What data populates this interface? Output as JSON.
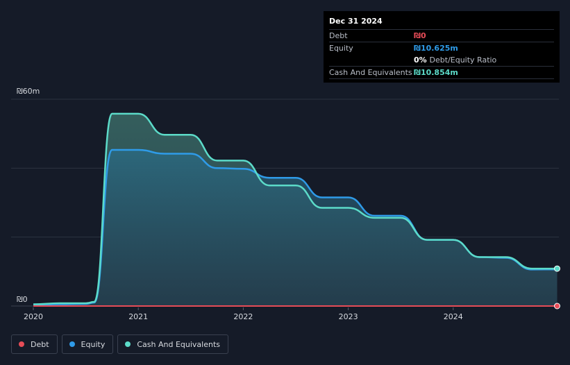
{
  "chart_data": {
    "type": "area",
    "x_ticks": [
      "2020",
      "2021",
      "2022",
      "2023",
      "2024"
    ],
    "y_ticks": [
      "₪0",
      "₪60m"
    ],
    "ylim": [
      0,
      60
    ],
    "y_unit": "₪m",
    "grid": true,
    "legend_position": "bottom-left",
    "series": [
      {
        "name": "Debt",
        "color": "#e64c57",
        "points": [
          [
            2020.0,
            0
          ],
          [
            2024.99,
            0
          ]
        ]
      },
      {
        "name": "Equity",
        "color": "#2f9be8",
        "points": [
          [
            2020.0,
            0.3
          ],
          [
            2020.25,
            0.5
          ],
          [
            2020.5,
            0.6
          ],
          [
            2020.58,
            1.0
          ],
          [
            2020.75,
            45.3
          ],
          [
            2021.0,
            45.3
          ],
          [
            2021.25,
            44.2
          ],
          [
            2021.5,
            44.2
          ],
          [
            2021.75,
            40.0
          ],
          [
            2022.0,
            39.8
          ],
          [
            2022.25,
            37.2
          ],
          [
            2022.5,
            37.2
          ],
          [
            2022.75,
            31.5
          ],
          [
            2023.0,
            31.5
          ],
          [
            2023.25,
            26.2
          ],
          [
            2023.5,
            26.2
          ],
          [
            2023.75,
            19.2
          ],
          [
            2024.0,
            19.2
          ],
          [
            2024.25,
            14.2
          ],
          [
            2024.5,
            14.0
          ],
          [
            2024.75,
            10.6
          ],
          [
            2024.99,
            10.625
          ]
        ]
      },
      {
        "name": "Cash And Equivalents",
        "color": "#5cdbc9",
        "points": [
          [
            2020.0,
            0.5
          ],
          [
            2020.25,
            0.8
          ],
          [
            2020.5,
            0.8
          ],
          [
            2020.58,
            1.2
          ],
          [
            2020.75,
            55.8
          ],
          [
            2021.0,
            55.8
          ],
          [
            2021.25,
            49.7
          ],
          [
            2021.5,
            49.7
          ],
          [
            2021.75,
            42.2
          ],
          [
            2022.0,
            42.2
          ],
          [
            2022.25,
            35.0
          ],
          [
            2022.5,
            35.0
          ],
          [
            2022.75,
            28.5
          ],
          [
            2023.0,
            28.5
          ],
          [
            2023.25,
            25.6
          ],
          [
            2023.5,
            25.6
          ],
          [
            2023.75,
            19.2
          ],
          [
            2024.0,
            19.2
          ],
          [
            2024.25,
            14.2
          ],
          [
            2024.5,
            14.2
          ],
          [
            2024.75,
            10.85
          ],
          [
            2024.99,
            10.854
          ]
        ]
      }
    ]
  },
  "tooltip": {
    "date": "Dec 31 2024",
    "rows": [
      {
        "label": "Debt",
        "value": "₪0",
        "color": "#e64c57"
      },
      {
        "label": "Equity",
        "value": "₪10.625m",
        "color": "#2f9be8"
      },
      {
        "label": "",
        "value": "0%",
        "suffix": "Debt/Equity Ratio",
        "color": "#ffffff"
      },
      {
        "label": "Cash And Equivalents",
        "value": "₪10.854m",
        "color": "#5cdbc9"
      }
    ]
  },
  "legend": [
    {
      "label": "Debt",
      "color": "#e64c57"
    },
    {
      "label": "Equity",
      "color": "#2f9be8"
    },
    {
      "label": "Cash And Equivalents",
      "color": "#5cdbc9"
    }
  ]
}
